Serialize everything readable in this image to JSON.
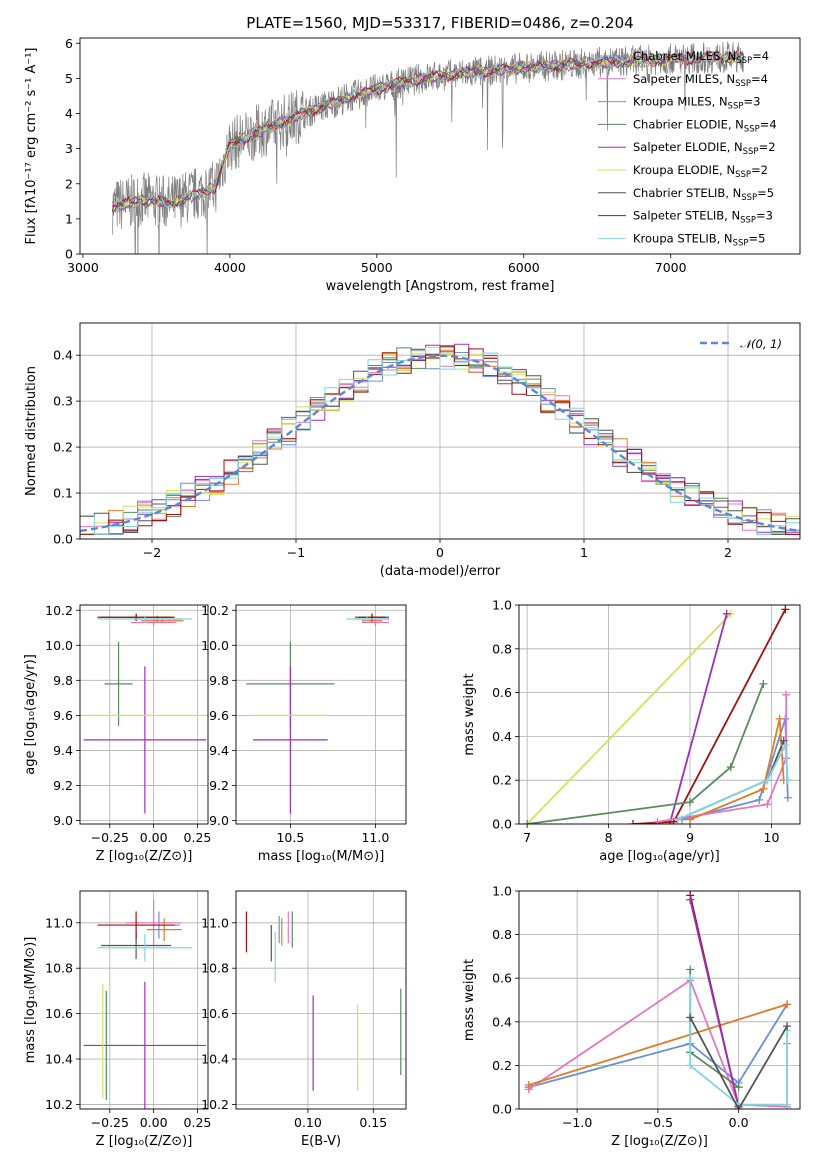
{
  "palette": [
    "#6b8fd6",
    "#e377c2",
    "#e07b2b",
    "#5a8a5e",
    "#9b30b8",
    "#d4e157",
    "#555555",
    "#a01010",
    "#7fd7de"
  ],
  "chart_data": [
    {
      "id": "spectrum",
      "type": "line",
      "title": "PLATE=1560, MJD=53317, FIBERID=0486, z=0.204",
      "xlabel": "wavelength [Angstrom, rest frame]",
      "ylabel": "Flux [fλ10⁻¹⁷ erg cm⁻² s⁻¹ A⁻¹]",
      "xlim": [
        2980,
        7880
      ],
      "ylim": [
        0,
        6.15
      ],
      "xticks": [
        3000,
        4000,
        5000,
        6000,
        7000
      ],
      "yticks": [
        0,
        1,
        2,
        3,
        4,
        5,
        6
      ],
      "grid": false,
      "legend_position": "top-right",
      "continuum": [
        [
          3200,
          1.35
        ],
        [
          3400,
          1.55
        ],
        [
          3600,
          1.45
        ],
        [
          3900,
          1.9
        ],
        [
          4000,
          3.1
        ],
        [
          4200,
          3.5
        ],
        [
          4500,
          4.0
        ],
        [
          4800,
          4.45
        ],
        [
          5000,
          4.7
        ],
        [
          5300,
          5.0
        ],
        [
          5600,
          5.15
        ],
        [
          6000,
          5.3
        ],
        [
          6500,
          5.45
        ],
        [
          7000,
          5.55
        ],
        [
          7400,
          5.6
        ]
      ],
      "series": [
        {
          "name": "Chabrier MILES, N",
          "sub": "SSP",
          "suffix": "=4"
        },
        {
          "name": "Salpeter MILES, N",
          "sub": "SSP",
          "suffix": "=4"
        },
        {
          "name": "Kroupa MILES, N",
          "sub": "SSP",
          "suffix": "=3"
        },
        {
          "name": "Chabrier ELODIE, N",
          "sub": "SSP",
          "suffix": "=4"
        },
        {
          "name": "Salpeter ELODIE, N",
          "sub": "SSP",
          "suffix": "=2"
        },
        {
          "name": "Kroupa ELODIE, N",
          "sub": "SSP",
          "suffix": "=2"
        },
        {
          "name": "Chabrier STELIB, N",
          "sub": "SSP",
          "suffix": "=5"
        },
        {
          "name": "Salpeter STELIB, N",
          "sub": "SSP",
          "suffix": "=3"
        },
        {
          "name": "Kroupa STELIB, N",
          "sub": "SSP",
          "suffix": "=5"
        }
      ]
    },
    {
      "id": "residuals",
      "type": "histogram",
      "xlabel": "(data-model)/error",
      "ylabel": "Normed distribution",
      "xlim": [
        -2.5,
        2.5
      ],
      "ylim": [
        0,
        0.47
      ],
      "xticks": [
        -2,
        -1,
        0,
        1,
        2
      ],
      "yticks": [
        0,
        0.1,
        0.2,
        0.3,
        0.4
      ],
      "grid": true,
      "legend_position": "top-right",
      "reference": {
        "name": "𝒩(0, 1)"
      },
      "bin_width": 0.1
    },
    {
      "id": "age_vs_Z",
      "type": "errorbar",
      "xlabel": "Z [log₁₀(Z/Z⊙)]",
      "ylabel": "age  [log₁₀(age/yr)]",
      "xlim": [
        -0.42,
        0.31
      ],
      "ylim": [
        8.98,
        10.23
      ],
      "xticks": [
        -0.25,
        0.0,
        0.25
      ],
      "xtick_labels": [
        "−0.25",
        "0.00",
        "0.25"
      ],
      "yticks": [
        9.0,
        9.2,
        9.4,
        9.6,
        9.8,
        10.0,
        10.2
      ],
      "grid": true,
      "points": [
        {
          "c": 0,
          "x": 0.02,
          "xe": 0.14,
          "y": 10.15,
          "ye": 0.02
        },
        {
          "c": 1,
          "x": 0.0,
          "xe": 0.13,
          "y": 10.13,
          "ye": 0.02
        },
        {
          "c": 2,
          "x": 0.05,
          "xe": 0.12,
          "y": 10.14,
          "ye": 0.01
        },
        {
          "c": 3,
          "x": -0.2,
          "xe": 0.08,
          "y": 9.78,
          "ye": 0.24
        },
        {
          "c": 4,
          "x": -0.05,
          "xe": 0.35,
          "y": 9.46,
          "ye": 0.42
        },
        {
          "c": 5,
          "x": -0.05,
          "xe": 0.35,
          "y": 9.6,
          "ye": 0.0
        },
        {
          "c": 6,
          "x": -0.1,
          "xe": 0.2,
          "y": 10.16,
          "ye": 0.02
        },
        {
          "c": 7,
          "x": -0.1,
          "xe": 0.22,
          "y": 10.16,
          "ye": 0.02
        },
        {
          "c": 8,
          "x": -0.05,
          "xe": 0.27,
          "y": 10.15,
          "ye": 0.02
        }
      ]
    },
    {
      "id": "age_vs_mass",
      "type": "errorbar",
      "xlabel": "mass [log₁₀(M/M⊙)]",
      "xlim": [
        10.18,
        11.18
      ],
      "ylim": [
        8.98,
        10.23
      ],
      "xticks": [
        10.5,
        11.0
      ],
      "xtick_labels": [
        "10.5",
        "11.0"
      ],
      "yticks": [
        9.0,
        9.2,
        9.4,
        9.6,
        9.8,
        10.0,
        10.2
      ],
      "grid": true,
      "points": [
        {
          "c": 0,
          "x": 10.98,
          "xe": 0.1,
          "y": 10.15,
          "ye": 0.02
        },
        {
          "c": 1,
          "x": 11.0,
          "xe": 0.08,
          "y": 10.13,
          "ye": 0.02
        },
        {
          "c": 2,
          "x": 10.98,
          "xe": 0.06,
          "y": 10.14,
          "ye": 0.01
        },
        {
          "c": 3,
          "x": 10.5,
          "xe": 0.26,
          "y": 9.78,
          "ye": 0.24
        },
        {
          "c": 4,
          "x": 10.5,
          "xe": 0.22,
          "y": 9.46,
          "ye": 0.42
        },
        {
          "c": 5,
          "x": 10.5,
          "xe": 0.22,
          "y": 9.6,
          "ye": 0.0
        },
        {
          "c": 6,
          "x": 10.98,
          "xe": 0.1,
          "y": 10.16,
          "ye": 0.02
        },
        {
          "c": 7,
          "x": 10.98,
          "xe": 0.08,
          "y": 10.16,
          "ye": 0.02
        },
        {
          "c": 8,
          "x": 10.95,
          "xe": 0.12,
          "y": 10.15,
          "ye": 0.02
        }
      ]
    },
    {
      "id": "weight_vs_age",
      "type": "line",
      "xlabel": "age  [log₁₀(age/yr)]",
      "ylabel": "mass weight",
      "xlim": [
        6.9,
        10.35
      ],
      "ylim": [
        0,
        1.0
      ],
      "xticks": [
        7,
        8,
        9,
        10
      ],
      "yticks": [
        0,
        0.2,
        0.4,
        0.6,
        0.8,
        1.0
      ],
      "ytick_labels": [
        "0.0",
        "0.2",
        "0.4",
        "0.6",
        "0.8",
        "1.0"
      ],
      "grid": true,
      "series": [
        {
          "c": 5,
          "x": [
            7.0,
            9.5
          ],
          "y": [
            0.0,
            0.96
          ]
        },
        {
          "c": 4,
          "x": [
            8.75,
            9.45
          ],
          "y": [
            0.0,
            0.96
          ]
        },
        {
          "c": 7,
          "x": [
            8.3,
            8.8,
            10.17
          ],
          "y": [
            0.0,
            0.01,
            0.98
          ]
        },
        {
          "c": 3,
          "x": [
            7.0,
            9.0,
            9.5,
            9.9
          ],
          "y": [
            0.0,
            0.1,
            0.26,
            0.64
          ]
        },
        {
          "c": 0,
          "x": [
            8.9,
            9.85,
            10.17,
            10.2
          ],
          "y": [
            0.02,
            0.11,
            0.48,
            0.12
          ]
        },
        {
          "c": 1,
          "x": [
            8.6,
            9.95,
            10.18,
            10.18
          ],
          "y": [
            0.01,
            0.09,
            0.3,
            0.59
          ]
        },
        {
          "c": 2,
          "x": [
            9.0,
            9.9,
            10.1,
            10.15
          ],
          "y": [
            0.02,
            0.16,
            0.48,
            0.2
          ]
        },
        {
          "c": 6,
          "x": [
            8.85,
            9.95,
            10.15
          ],
          "y": [
            0.02,
            0.2,
            0.38
          ]
        },
        {
          "c": 8,
          "x": [
            8.85,
            9.95,
            10.17,
            10.2
          ],
          "y": [
            0.02,
            0.2,
            0.36,
            0.2
          ]
        }
      ]
    },
    {
      "id": "mass_vs_Z",
      "type": "errorbar",
      "xlabel": "Z [log₁₀(Z/Z⊙)]",
      "ylabel": "mass [log₁₀(M/M⊙)]",
      "xlim": [
        -0.42,
        0.31
      ],
      "ylim": [
        10.18,
        11.14
      ],
      "xticks": [
        -0.25,
        0.0,
        0.25
      ],
      "xtick_labels": [
        "−0.25",
        "0.00",
        "0.25"
      ],
      "yticks": [
        10.2,
        10.4,
        10.6,
        10.8,
        11.0
      ],
      "grid": true,
      "points": [
        {
          "c": 0,
          "x": 0.03,
          "xe": 0.12,
          "y": 10.99,
          "ye": 0.06
        },
        {
          "c": 1,
          "x": 0.0,
          "xe": 0.16,
          "y": 11.0,
          "ye": 0.1
        },
        {
          "c": 2,
          "x": 0.06,
          "xe": 0.1,
          "y": 10.97,
          "ye": 0.05
        },
        {
          "c": 3,
          "x": -0.27,
          "xe": 0.0,
          "y": 10.46,
          "ye": 0.24
        },
        {
          "c": 4,
          "x": -0.05,
          "xe": 0.35,
          "y": 10.46,
          "ye": 0.28
        },
        {
          "c": 5,
          "x": -0.29,
          "xe": 0.0,
          "y": 10.48,
          "ye": 0.25
        },
        {
          "c": 6,
          "x": -0.1,
          "xe": 0.2,
          "y": 10.9,
          "ye": 0.06
        },
        {
          "c": 7,
          "x": -0.1,
          "xe": 0.22,
          "y": 10.99,
          "ye": 0.06
        },
        {
          "c": 8,
          "x": -0.05,
          "xe": 0.27,
          "y": 10.89,
          "ye": 0.06
        }
      ]
    },
    {
      "id": "mass_vs_ebv",
      "type": "errorbar",
      "xlabel": "E(B-V)",
      "xlim": [
        0.045,
        0.175
      ],
      "ylim": [
        10.18,
        11.14
      ],
      "xticks": [
        0.1,
        0.15
      ],
      "xtick_labels": [
        "0.10",
        "0.15"
      ],
      "yticks": [
        10.2,
        10.4,
        10.6,
        10.8,
        11.0
      ],
      "grid": true,
      "points": [
        {
          "c": 7,
          "x": 0.053,
          "xe": 0.0,
          "y": 10.96,
          "ye": 0.09
        },
        {
          "c": 6,
          "x": 0.072,
          "xe": 0.0,
          "y": 10.91,
          "ye": 0.08
        },
        {
          "c": 8,
          "x": 0.075,
          "xe": 0.0,
          "y": 10.85,
          "ye": 0.11
        },
        {
          "c": 0,
          "x": 0.078,
          "xe": 0.0,
          "y": 10.97,
          "ye": 0.06
        },
        {
          "c": 2,
          "x": 0.08,
          "xe": 0.0,
          "y": 10.96,
          "ye": 0.06
        },
        {
          "c": 1,
          "x": 0.085,
          "xe": 0.0,
          "y": 10.98,
          "ye": 0.07
        },
        {
          "c": 3,
          "x": 0.088,
          "xe": 0.0,
          "y": 10.97,
          "ye": 0.08
        },
        {
          "c": 4,
          "x": 0.104,
          "xe": 0.0,
          "y": 10.47,
          "ye": 0.21
        },
        {
          "c": 5,
          "x": 0.138,
          "xe": 0.0,
          "y": 10.45,
          "ye": 0.19
        },
        {
          "c": 3,
          "x": 0.171,
          "xe": 0.0,
          "y": 10.52,
          "ye": 0.19
        }
      ]
    },
    {
      "id": "weight_vs_Z",
      "type": "line",
      "xlabel": "Z [log₁₀(Z/Z⊙)]",
      "ylabel": "mass weight",
      "xlim": [
        -1.36,
        0.38
      ],
      "ylim": [
        0,
        1.0
      ],
      "xticks": [
        -1.0,
        -0.5,
        0.0
      ],
      "xtick_labels": [
        "−1.0",
        "−0.5",
        "0.0"
      ],
      "yticks": [
        0,
        0.2,
        0.4,
        0.6,
        0.8,
        1.0
      ],
      "ytick_labels": [
        "0.0",
        "0.2",
        "0.4",
        "0.6",
        "0.8",
        "1.0"
      ],
      "grid": true,
      "series": [
        {
          "c": 0,
          "x": [
            -1.3,
            -0.3,
            0.0,
            0.3
          ],
          "y": [
            0.1,
            0.3,
            0.12,
            0.48
          ]
        },
        {
          "c": 1,
          "x": [
            -1.3,
            -0.3,
            0.0,
            0.3,
            0.3
          ],
          "y": [
            0.09,
            0.59,
            0.02,
            0.01,
            0.3
          ]
        },
        {
          "c": 2,
          "x": [
            -1.3,
            0.3
          ],
          "y": [
            0.11,
            0.48
          ]
        },
        {
          "c": 3,
          "x": [
            -0.3,
            -0.3,
            0.0
          ],
          "y": [
            0.64,
            0.26,
            0.1
          ]
        },
        {
          "c": 7,
          "x": [
            -0.3,
            0.0
          ],
          "y": [
            0.98,
            0.01
          ]
        },
        {
          "c": 4,
          "x": [
            -0.3,
            0.0
          ],
          "y": [
            0.96,
            0.01
          ]
        },
        {
          "c": 8,
          "x": [
            -0.3,
            -0.3,
            0.0,
            0.3,
            0.3
          ],
          "y": [
            0.6,
            0.2,
            0.02,
            0.02,
            0.36
          ]
        },
        {
          "c": 6,
          "x": [
            -0.3,
            0.0,
            0.3
          ],
          "y": [
            0.42,
            0.0,
            0.38
          ]
        }
      ]
    }
  ]
}
